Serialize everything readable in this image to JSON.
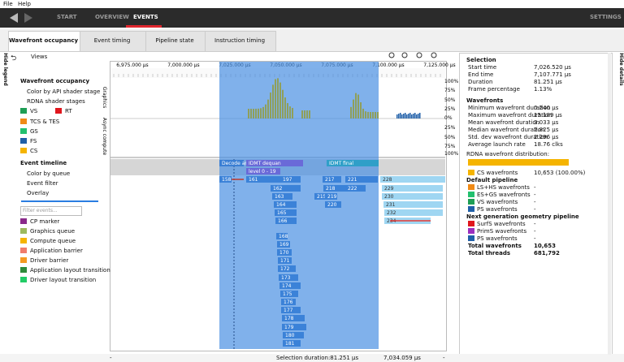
{
  "menu": [
    "File",
    "Help"
  ],
  "nav": {
    "items": [
      "START",
      "OVERVIEW",
      "EVENTS"
    ],
    "settings": "SETTINGS"
  },
  "tabs": [
    "Wavefront occupancy",
    "Event timing",
    "Pipeline state",
    "Instruction timing"
  ],
  "side_labels": {
    "left": "Hide legend",
    "right": "Hide details"
  },
  "legend": {
    "views": "Views",
    "wavefront_title": "Wavefront occupancy",
    "color_by": "Color by API shader stage",
    "stages_title": "RDNA shader stages",
    "stages": [
      {
        "name": "VS",
        "color": "#1e9e55"
      },
      {
        "name": "RT",
        "color": "#e0161d"
      },
      {
        "name": "TCS & TES",
        "color": "#f08a16"
      },
      {
        "name": "GS",
        "color": "#22c06e"
      },
      {
        "name": "FS",
        "color": "#1f5fa8"
      },
      {
        "name": "CS",
        "color": "#f5b400"
      }
    ],
    "event_title": "Event timeline",
    "color_by_queue": "Color by queue",
    "event_filter": "Event filter",
    "overlay": "Overlay",
    "filter_placeholder": "Filter events...",
    "overlays": [
      {
        "name": "CP marker",
        "color": "#8a2a8a"
      },
      {
        "name": "Graphics queue",
        "color": "#9cba5e"
      },
      {
        "name": "Compute queue",
        "color": "#f5b400"
      },
      {
        "name": "Application barrier",
        "color": "#f07c6c"
      },
      {
        "name": "Driver barrier",
        "color": "#f59a22"
      },
      {
        "name": "Application layout transition",
        "color": "#2e8b3a"
      },
      {
        "name": "Driver layout transition",
        "color": "#22cc66"
      }
    ]
  },
  "timeline": {
    "ruler": [
      "6,975.000 µs",
      "7,000.000 µs",
      "7,025.000 µs",
      "7,050.000 µs",
      "7,075.000 µs",
      "7,100.000 µs",
      "7,125.000 µs"
    ],
    "lanes": [
      "Graphics",
      "Async compute"
    ],
    "percent_labels": [
      "100%",
      "75%",
      "50%",
      "25%",
      "0%",
      "25%",
      "50%",
      "75%",
      "100%"
    ],
    "events": [
      "Decode and",
      "IDMT dequan",
      "IDMT final",
      "level 0 - 19",
      "158",
      "161",
      "197",
      "217",
      "221",
      "228",
      "162",
      "218",
      "222",
      "229",
      "163",
      "215",
      "219",
      "230",
      "164",
      "220",
      "231",
      "165",
      "232",
      "166",
      "234",
      "168",
      "169",
      "170",
      "171",
      "172",
      "173",
      "174",
      "175",
      "176",
      "177",
      "178",
      "179",
      "180",
      "181"
    ]
  },
  "status": [
    "-",
    "Selection duration:81.251 µs",
    "7,034.059 µs",
    "-"
  ],
  "details": {
    "selection_title": "Selection",
    "selection_rows": [
      [
        "Start time",
        "7,026.520 µs"
      ],
      [
        "End time",
        "7,107.771 µs"
      ],
      [
        "Duration",
        "81.251 µs"
      ],
      [
        "Frame percentage",
        "1.13%"
      ]
    ],
    "wavefronts_title": "Wavefronts",
    "wavefront_rows": [
      [
        "Minimum wavefront duration",
        "0.240 µs"
      ],
      [
        "Maximum wavefront duration",
        "15.189 µs"
      ],
      [
        "Mean wavefront duration",
        "3.033 µs"
      ],
      [
        "Median wavefront duration",
        "2.825 µs"
      ],
      [
        "Std. dev wavefront duration",
        "2.296 µs"
      ],
      [
        "Average launch rate",
        "18.76 clks"
      ]
    ],
    "distribution_title": "RDNA wavefront distribution:",
    "distribution": [
      {
        "name": "CS wavefronts",
        "value": "10,653 (100.00%)",
        "color": "#f5b400"
      }
    ],
    "default_title": "Default pipeline",
    "default_rows": [
      {
        "name": "LS+HS wavefronts",
        "value": "-",
        "color": "#f08a16"
      },
      {
        "name": "ES+GS wavefronts",
        "value": "-",
        "color": "#22c06e"
      },
      {
        "name": "VS wavefronts",
        "value": "-",
        "color": "#1e9e55"
      },
      {
        "name": "PS wavefronts",
        "value": "-",
        "color": "#1f5fa8"
      }
    ],
    "ngg_title": "Next generation geometry pipeline",
    "ngg_rows": [
      {
        "name": "SurfS wavefronts",
        "value": "-",
        "color": "#e0161d"
      },
      {
        "name": "PrimS wavefronts",
        "value": "-",
        "color": "#9b2fbf"
      },
      {
        "name": "PS wavefronts",
        "value": "-",
        "color": "#1f5fa8"
      }
    ],
    "total_rows": [
      [
        "Total wavefronts",
        "10,653"
      ],
      [
        "Total threads",
        "681,792"
      ]
    ]
  }
}
